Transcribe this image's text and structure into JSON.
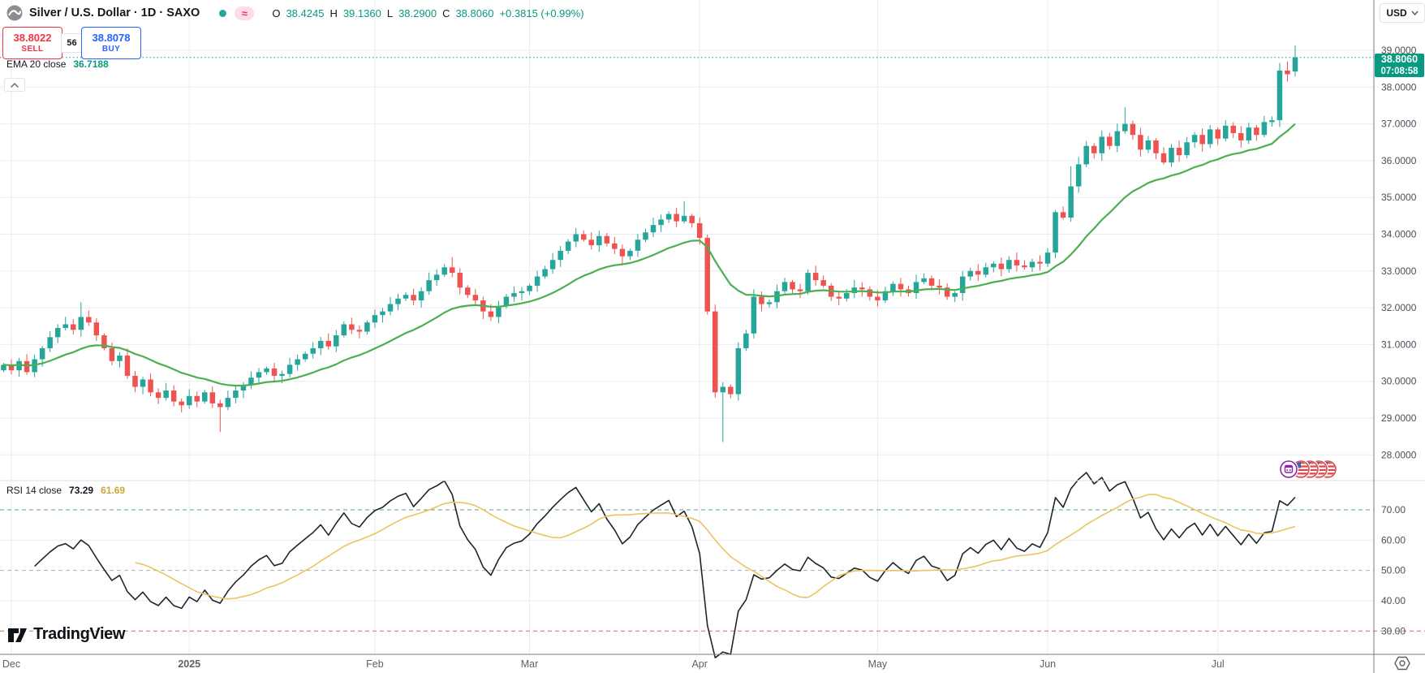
{
  "header": {
    "title": "Silver / U.S. Dollar · 1D · SAXO",
    "delayed_badge": "≈",
    "ohlc": {
      "o_label": "O",
      "o": "38.4245",
      "h_label": "H",
      "h": "39.1360",
      "l_label": "L",
      "l": "38.2900",
      "c_label": "C",
      "c": "38.8060",
      "change": "+0.3815 (+0.99%)"
    }
  },
  "trade": {
    "sell_price": "38.8022",
    "sell_label": "SELL",
    "spread": "56",
    "buy_price": "38.8078",
    "buy_label": "BUY"
  },
  "indicators": {
    "ema": {
      "label": "EMA 20 close",
      "value": "36.7188"
    },
    "rsi": {
      "label": "RSI 14 close",
      "value": "73.29",
      "ma": "61.69"
    }
  },
  "price_scale": {
    "currency": "USD"
  },
  "price_tag": {
    "price": "38.8060",
    "countdown": "07:08:58"
  },
  "branding": {
    "name": "TradingView"
  },
  "chart_data": {
    "type": "candlestick",
    "symbol": "Silver / U.S. Dollar",
    "interval": "1D",
    "exchange": "SAXO",
    "ohlc_display": {
      "open": 38.4245,
      "high": 39.136,
      "low": 38.29,
      "close": 38.806,
      "change": 0.3815,
      "change_pct": 0.99
    },
    "last_price": 38.806,
    "countdown": "07:08:58",
    "y_axis": {
      "currency": "USD",
      "ticks": [
        39,
        38,
        37,
        36,
        35,
        34,
        33,
        32,
        31,
        30,
        29,
        28
      ],
      "range": [
        27.6,
        39.5
      ],
      "format_decimals": 4
    },
    "x_axis": {
      "labels": [
        {
          "label": "Dec",
          "i": 1,
          "strong": false
        },
        {
          "label": "2025",
          "i": 24,
          "strong": true
        },
        {
          "label": "Feb",
          "i": 48,
          "strong": false
        },
        {
          "label": "Mar",
          "i": 68,
          "strong": false
        },
        {
          "label": "Apr",
          "i": 90,
          "strong": false
        },
        {
          "label": "May",
          "i": 113,
          "strong": false
        },
        {
          "label": "Jun",
          "i": 135,
          "strong": false
        },
        {
          "label": "Jul",
          "i": 157,
          "strong": false
        }
      ]
    },
    "open_first": 30.3,
    "closes_est": [
      30.45,
      30.3,
      30.55,
      30.25,
      30.6,
      30.9,
      31.2,
      31.45,
      31.55,
      31.4,
      31.75,
      31.6,
      31.25,
      30.9,
      30.55,
      30.7,
      30.15,
      29.85,
      30.05,
      29.7,
      29.55,
      29.75,
      29.45,
      29.35,
      29.6,
      29.45,
      29.7,
      29.4,
      29.3,
      29.55,
      29.75,
      29.9,
      30.1,
      30.25,
      30.35,
      30.15,
      30.2,
      30.45,
      30.6,
      30.75,
      30.9,
      31.1,
      30.95,
      31.25,
      31.55,
      31.4,
      31.35,
      31.6,
      31.8,
      31.9,
      32.1,
      32.25,
      32.35,
      32.2,
      32.45,
      32.75,
      32.9,
      33.1,
      32.95,
      32.55,
      32.35,
      32.2,
      31.9,
      31.75,
      32.05,
      32.3,
      32.4,
      32.45,
      32.6,
      32.85,
      33.05,
      33.3,
      33.55,
      33.8,
      34.0,
      33.85,
      33.7,
      33.95,
      33.75,
      33.6,
      33.4,
      33.55,
      33.85,
      34.05,
      34.25,
      34.4,
      34.55,
      34.35,
      34.5,
      34.3,
      33.9,
      31.9,
      29.7,
      29.85,
      29.65,
      30.9,
      31.3,
      32.3,
      32.1,
      32.15,
      32.45,
      32.7,
      32.5,
      32.45,
      32.95,
      32.75,
      32.6,
      32.3,
      32.25,
      32.4,
      32.55,
      32.5,
      32.3,
      32.2,
      32.45,
      32.65,
      32.5,
      32.4,
      32.7,
      32.8,
      32.6,
      32.55,
      32.3,
      32.4,
      32.85,
      33.0,
      32.9,
      33.1,
      33.2,
      33.05,
      33.3,
      33.15,
      33.1,
      33.25,
      33.2,
      33.5,
      34.6,
      34.45,
      35.3,
      35.9,
      36.4,
      36.2,
      36.65,
      36.4,
      36.8,
      37.0,
      36.7,
      36.3,
      36.55,
      36.2,
      35.95,
      36.35,
      36.15,
      36.5,
      36.7,
      36.45,
      36.85,
      36.6,
      36.95,
      36.75,
      36.55,
      36.9,
      36.7,
      37.05,
      37.1,
      38.45,
      38.35,
      38.806
    ],
    "candle_overrides": {
      "10": {
        "h": 32.15
      },
      "28": {
        "l": 28.62
      },
      "58": {
        "h": 33.38
      },
      "88": {
        "h": 34.9
      },
      "93": {
        "l": 28.35
      },
      "138": {
        "h": 35.85
      },
      "145": {
        "h": 37.45
      },
      "166": {
        "h": 38.7,
        "l": 38.15
      },
      "167": {
        "o": 38.4245,
        "h": 39.136,
        "l": 38.29,
        "c": 38.806
      }
    },
    "ema20": {
      "label": "EMA 20 close",
      "period": 20,
      "current": 36.7188
    },
    "rsi14": {
      "label": "RSI 14 close",
      "period": 14,
      "current": 73.29,
      "ma_current": 61.69,
      "levels": {
        "upper": 70,
        "middle": 50,
        "lower": 30
      },
      "axis_ticks": [
        70,
        60,
        50,
        40,
        30
      ]
    },
    "colors": {
      "up": "#26a69a",
      "down": "#ef5350",
      "ema": "#4caf50",
      "rsi_line": "#20242e",
      "rsi_ma": "#e9c55e",
      "level_upper": "#5ba08b",
      "level_middle": "#a9adb5",
      "level_lower": "#cc6f6f",
      "grid": "#e9ebf0",
      "axis_text": "#4a4e59",
      "last_price": "#089981"
    }
  }
}
